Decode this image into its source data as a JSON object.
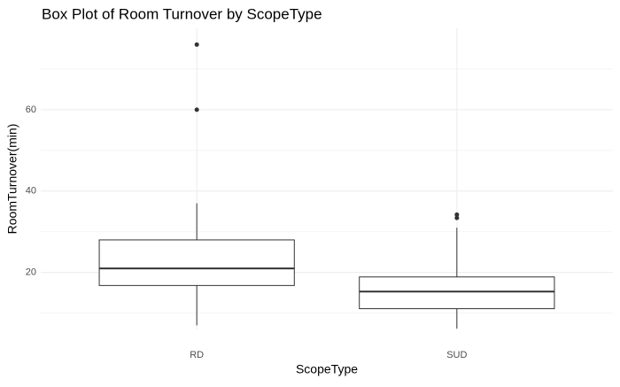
{
  "chart_data": {
    "type": "box",
    "title": "Box Plot of Room Turnover by ScopeType",
    "x_label": "ScopeType",
    "y_label": "RoomTurnover(min)",
    "categories": [
      "RD",
      "SUD"
    ],
    "whisker_low": [
      7,
      6.2
    ],
    "q1": [
      16.8,
      11.1
    ],
    "median": [
      21,
      15.3
    ],
    "q3": [
      28,
      18.9
    ],
    "whisker_high": [
      37,
      31
    ],
    "outliers": [
      [
        60,
        76
      ],
      [
        33.4,
        34.2
      ]
    ],
    "color": "#333333",
    "fill": "#ffffff",
    "ylim": [
      6,
      80
    ],
    "yticks": [
      20,
      40,
      60
    ],
    "minor_yticks": [
      10,
      30,
      50,
      70
    ],
    "grid": true
  }
}
